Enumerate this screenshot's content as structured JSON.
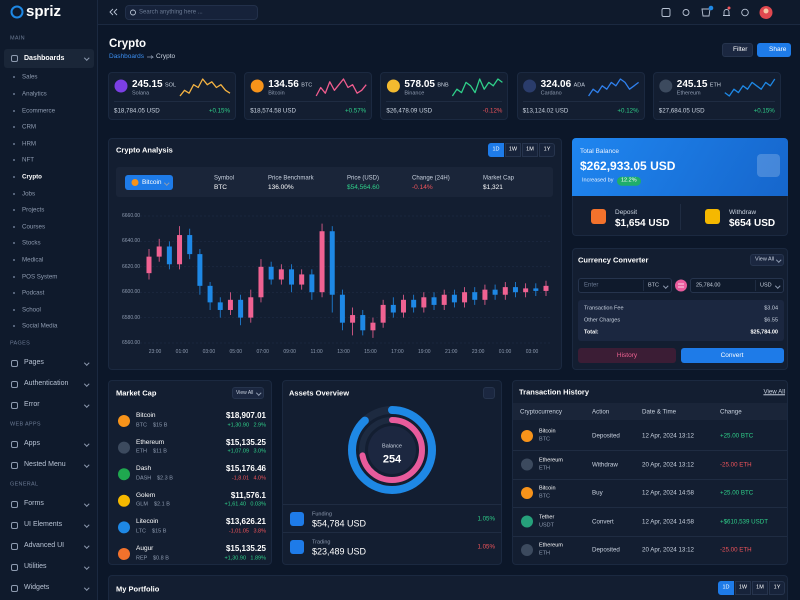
{
  "sidebar": {
    "brand": "spriz",
    "sections": [
      {
        "title": "MAIN",
        "items": [
          {
            "label": "Dashboards",
            "active": true,
            "children": [
              {
                "label": "Sales"
              },
              {
                "label": "Analytics"
              },
              {
                "label": "Ecommerce"
              },
              {
                "label": "CRM"
              },
              {
                "label": "HRM"
              },
              {
                "label": "NFT"
              },
              {
                "label": "Crypto",
                "active": true
              },
              {
                "label": "Jobs"
              },
              {
                "label": "Projects"
              },
              {
                "label": "Courses"
              },
              {
                "label": "Stocks"
              },
              {
                "label": "Medical"
              },
              {
                "label": "POS System"
              },
              {
                "label": "Podcast"
              },
              {
                "label": "School"
              },
              {
                "label": "Social Media"
              }
            ]
          }
        ]
      },
      {
        "title": "PAGES",
        "items": [
          {
            "label": "Pages"
          },
          {
            "label": "Authentication"
          },
          {
            "label": "Error"
          }
        ]
      },
      {
        "title": "WEB APPS",
        "items": [
          {
            "label": "Apps"
          },
          {
            "label": "Nested Menu"
          }
        ]
      },
      {
        "title": "GENERAL",
        "items": [
          {
            "label": "Forms"
          },
          {
            "label": "UI Elements"
          },
          {
            "label": "Advanced UI"
          },
          {
            "label": "Utilities"
          },
          {
            "label": "Widgets"
          }
        ]
      }
    ]
  },
  "header": {
    "search_placeholder": "Search anything here ..."
  },
  "page": {
    "title": "Crypto",
    "breadcrumb": [
      "Dashboards",
      "Crypto"
    ],
    "buttons": [
      "Filter",
      "Share"
    ]
  },
  "coins": [
    {
      "amount": "245.15",
      "symbol": "SOL",
      "name": "Solana",
      "usd": "$18,784.05 USD",
      "change": "+0.15%",
      "color": "#7b3fe4",
      "spark": {
        "type": "line",
        "color": "#f5b342",
        "values": [
          5,
          7,
          6,
          9,
          8,
          11,
          9,
          10,
          8,
          9,
          7,
          6
        ]
      }
    },
    {
      "amount": "134.56",
      "symbol": "BTC",
      "name": "Bitcoin",
      "usd": "$18,574.58 USD",
      "change": "+0.57%",
      "color": "#f7931a",
      "spark": {
        "type": "line",
        "color": "#f05c8e",
        "values": [
          6,
          9,
          7,
          11,
          8,
          10,
          12,
          9,
          10,
          7,
          8,
          10
        ]
      }
    },
    {
      "amount": "578.05",
      "symbol": "BNB",
      "name": "Binance",
      "usd": "$26,478.09 USD",
      "change": "-0.12%",
      "color": "#f3ba2f",
      "spark": {
        "type": "line",
        "color": "#2fd08a",
        "values": [
          7,
          9,
          8,
          11,
          10,
          8,
          12,
          9,
          11,
          10,
          12,
          11
        ]
      }
    },
    {
      "amount": "324.06",
      "symbol": "ADA",
      "name": "Cardano",
      "usd": "$13,124.02 USD",
      "change": "+0.12%",
      "color": "#2a3c6b",
      "spark": {
        "type": "line",
        "color": "#2f80ed",
        "values": [
          6,
          8,
          7,
          9,
          8,
          10,
          9,
          11,
          10,
          8,
          9,
          10
        ]
      }
    },
    {
      "amount": "245.15",
      "symbol": "ETH",
      "name": "Ethereum",
      "usd": "$27,684.05 USD",
      "change": "+0.15%",
      "color": "#3c4a5e",
      "spark": {
        "type": "line",
        "color": "#1e88e5",
        "values": [
          7,
          6,
          8,
          7,
          9,
          8,
          10,
          9,
          8,
          10,
          9,
          11
        ]
      }
    }
  ],
  "analysis": {
    "tabs": [
      {
        "label": "1D",
        "active": true
      },
      {
        "label": "1W"
      },
      {
        "label": "1M"
      },
      {
        "label": "1Y"
      }
    ],
    "coin_select": "Bitcoin",
    "stats": [
      {
        "label": "Symbol",
        "value": "BTC"
      },
      {
        "label": "Price Benchmark",
        "value": "136.00%"
      },
      {
        "label": "Price (USD)",
        "value": "$54,564.60",
        "color": "#2fd08a"
      },
      {
        "label": "Change (24H)",
        "value": "-0.14%",
        "color": "#f2545b"
      },
      {
        "label": "Market Cap",
        "value": "$1,321"
      }
    ]
  },
  "chart_data": {
    "type": "candlestick",
    "title": "Crypto Analysis",
    "x": [
      "23:00",
      "01:00",
      "03:00",
      "05:00",
      "07:00",
      "09:00",
      "11:00",
      "13:00",
      "15:00",
      "17:00",
      "19:00",
      "21:00",
      "23:00",
      "01:00",
      "03:00"
    ],
    "ylim": [
      6560,
      6660
    ],
    "yticks": [
      {
        "value": 6660,
        "label": "6660.00"
      },
      {
        "value": 6640,
        "label": "6640.00"
      },
      {
        "value": 6620,
        "label": "6620.00"
      },
      {
        "value": 6600,
        "label": "6600.00"
      },
      {
        "value": 6580,
        "label": "6580.00"
      },
      {
        "value": 6560,
        "label": "6560.00"
      }
    ],
    "grid": true,
    "up_color": "#f06292",
    "down_color": "#1e88e5",
    "candles": [
      {
        "o": 6615,
        "h": 6634,
        "l": 6610,
        "c": 6628
      },
      {
        "o": 6628,
        "h": 6642,
        "l": 6624,
        "c": 6636
      },
      {
        "o": 6636,
        "h": 6640,
        "l": 6618,
        "c": 6622
      },
      {
        "o": 6622,
        "h": 6652,
        "l": 6618,
        "c": 6645
      },
      {
        "o": 6645,
        "h": 6650,
        "l": 6626,
        "c": 6630
      },
      {
        "o": 6630,
        "h": 6634,
        "l": 6598,
        "c": 6605
      },
      {
        "o": 6605,
        "h": 6608,
        "l": 6586,
        "c": 6592
      },
      {
        "o": 6592,
        "h": 6596,
        "l": 6580,
        "c": 6586
      },
      {
        "o": 6586,
        "h": 6600,
        "l": 6582,
        "c": 6594
      },
      {
        "o": 6594,
        "h": 6598,
        "l": 6574,
        "c": 6580
      },
      {
        "o": 6580,
        "h": 6602,
        "l": 6576,
        "c": 6596
      },
      {
        "o": 6596,
        "h": 6626,
        "l": 6592,
        "c": 6620
      },
      {
        "o": 6620,
        "h": 6624,
        "l": 6606,
        "c": 6610
      },
      {
        "o": 6610,
        "h": 6622,
        "l": 6606,
        "c": 6618
      },
      {
        "o": 6618,
        "h": 6622,
        "l": 6600,
        "c": 6606
      },
      {
        "o": 6606,
        "h": 6618,
        "l": 6602,
        "c": 6614
      },
      {
        "o": 6614,
        "h": 6618,
        "l": 6594,
        "c": 6600
      },
      {
        "o": 6600,
        "h": 6654,
        "l": 6596,
        "c": 6648
      },
      {
        "o": 6648,
        "h": 6652,
        "l": 6584,
        "c": 6598
      },
      {
        "o": 6598,
        "h": 6602,
        "l": 6570,
        "c": 6576
      },
      {
        "o": 6576,
        "h": 6588,
        "l": 6566,
        "c": 6582
      },
      {
        "o": 6582,
        "h": 6586,
        "l": 6566,
        "c": 6570
      },
      {
        "o": 6570,
        "h": 6580,
        "l": 6564,
        "c": 6576
      },
      {
        "o": 6576,
        "h": 6594,
        "l": 6572,
        "c": 6590
      },
      {
        "o": 6590,
        "h": 6596,
        "l": 6580,
        "c": 6584
      },
      {
        "o": 6584,
        "h": 6598,
        "l": 6580,
        "c": 6594
      },
      {
        "o": 6594,
        "h": 6598,
        "l": 6584,
        "c": 6588
      },
      {
        "o": 6588,
        "h": 6600,
        "l": 6584,
        "c": 6596
      },
      {
        "o": 6596,
        "h": 6600,
        "l": 6586,
        "c": 6590
      },
      {
        "o": 6590,
        "h": 6602,
        "l": 6586,
        "c": 6598
      },
      {
        "o": 6598,
        "h": 6602,
        "l": 6588,
        "c": 6592
      },
      {
        "o": 6592,
        "h": 6604,
        "l": 6588,
        "c": 6600
      },
      {
        "o": 6600,
        "h": 6604,
        "l": 6590,
        "c": 6594
      },
      {
        "o": 6594,
        "h": 6606,
        "l": 6590,
        "c": 6602
      },
      {
        "o": 6602,
        "h": 6606,
        "l": 6594,
        "c": 6598
      },
      {
        "o": 6598,
        "h": 6608,
        "l": 6594,
        "c": 6604
      },
      {
        "o": 6604,
        "h": 6608,
        "l": 6596,
        "c": 6600
      },
      {
        "o": 6600,
        "h": 6607,
        "l": 6596,
        "c": 6603
      },
      {
        "o": 6603,
        "h": 6607,
        "l": 6597,
        "c": 6601
      },
      {
        "o": 6601,
        "h": 6609,
        "l": 6597,
        "c": 6605
      }
    ]
  },
  "balance": {
    "label": "Total Balance",
    "amount": "$262,933.05 USD",
    "increase_label": "Increased by",
    "increase": "12.2%",
    "deposit": {
      "label": "Deposit",
      "amount": "$1,654 USD"
    },
    "withdraw": {
      "label": "Withdraw",
      "amount": "$654 USD"
    }
  },
  "converter": {
    "title": "Currency Converter",
    "view_all": "View All",
    "from": {
      "placeholder": "Enter",
      "currency": "BTC"
    },
    "to": {
      "amount": "25,784.00",
      "currency": "USD"
    },
    "summary": [
      {
        "label": "Transaction Fee",
        "value": "$3.04"
      },
      {
        "label": "Other Charges",
        "value": "$6.55"
      },
      {
        "label": "Total:",
        "value": "$25,784.00"
      }
    ],
    "buttons": [
      "History",
      "Convert"
    ]
  },
  "market_cap": {
    "title": "Market Cap",
    "view_all": "View All",
    "rows": [
      {
        "name": "Bitcoin",
        "symbol": "BTC",
        "cap": "$15 B",
        "price": "$18,907.01",
        "delta": "+1,30.90",
        "pct": "2.9%",
        "color": "#f7931a"
      },
      {
        "name": "Ethereum",
        "symbol": "ETH",
        "cap": "$11 B",
        "price": "$15,135.25",
        "delta": "+1,07.09",
        "pct": "3.0%",
        "color": "#3c4a5e"
      },
      {
        "name": "Dash",
        "symbol": "DASH",
        "cap": "$2.3 B",
        "price": "$15,176.46",
        "delta": "-1,8.01",
        "pct": "4.0%",
        "color": "#1fa84f"
      },
      {
        "name": "Golem",
        "symbol": "GLM",
        "cap": "$2.1 B",
        "price": "$11,576.1",
        "delta": "+1,61.40",
        "pct": "0.03%",
        "color": "#f5b800"
      },
      {
        "name": "Litecoin",
        "symbol": "LTC",
        "cap": "$15 B",
        "price": "$13,626.21",
        "delta": "-1,01.05",
        "pct": "3.8%",
        "color": "#1e88e5"
      },
      {
        "name": "Augur",
        "symbol": "REP",
        "cap": "$0.8 B",
        "price": "$15,135.25",
        "delta": "+1,30.90",
        "pct": "1.89%",
        "color": "#f3722c"
      }
    ]
  },
  "assets": {
    "title": "Assets Overview",
    "center_label": "Balance",
    "center_value": "254",
    "rings": [
      {
        "value": 88,
        "color": "#1e88e5"
      },
      {
        "value": 72,
        "color": "#e85b9c"
      }
    ],
    "scale_max": 100,
    "items": [
      {
        "label": "Funding",
        "amount": "$54,784 USD",
        "change": "1.05%",
        "change_color": "#2fd08a"
      },
      {
        "label": "Trading",
        "amount": "$23,489 USD",
        "change": "1.05%",
        "change_color": "#f2545b"
      }
    ]
  },
  "transactions": {
    "title": "Transaction History",
    "view_all": "View All",
    "columns": [
      "Cryptocurrency",
      "Action",
      "Date & Time",
      "Change"
    ],
    "rows": [
      {
        "name": "Bitcoin",
        "symbol": "BTC",
        "action": "Deposited",
        "date": "12 Apr, 2024 13:12",
        "change": "+25.00 BTC",
        "color": "#f7931a",
        "change_color": "#2fd08a"
      },
      {
        "name": "Ethereum",
        "symbol": "ETH",
        "action": "Withdraw",
        "date": "20 Apr, 2024 13:12",
        "change": "-25.00 ETH",
        "color": "#3c4a5e",
        "change_color": "#f2545b"
      },
      {
        "name": "Bitcoin",
        "symbol": "BTC",
        "action": "Buy",
        "date": "12 Apr, 2024 14:58",
        "change": "+25.00 BTC",
        "color": "#f7931a",
        "change_color": "#2fd08a"
      },
      {
        "name": "Tether",
        "symbol": "USDT",
        "action": "Convert",
        "date": "12 Apr, 2024 14:58",
        "change": "+$610,539 USDT",
        "color": "#26a17b",
        "change_color": "#2fd08a"
      },
      {
        "name": "Ethereum",
        "symbol": "ETH",
        "action": "Deposited",
        "date": "20 Apr, 2024 13:12",
        "change": "-25.00 ETH",
        "color": "#3c4a5e",
        "change_color": "#f2545b"
      }
    ]
  },
  "portfolio": {
    "title": "My Portfolio",
    "tabs": [
      {
        "label": "1D",
        "active": true
      },
      {
        "label": "1W"
      },
      {
        "label": "1M"
      },
      {
        "label": "1Y"
      }
    ]
  }
}
